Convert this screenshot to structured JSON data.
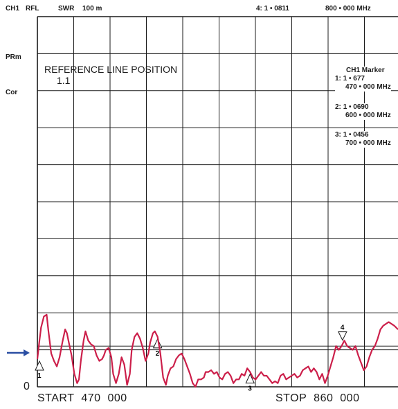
{
  "header": {
    "channel": "CH1",
    "format": "RFL",
    "mode": "SWR",
    "scale": "100 m",
    "marker_readout": "4: 1 • 0811",
    "marker_freq": "800 • 000 MHz"
  },
  "side_labels": {
    "prm": "PRm",
    "cor": "Cor"
  },
  "reference": {
    "title": "REFERENCE LINE POSITION",
    "value": "1.1"
  },
  "marker_panel": {
    "title": "CH1 Marker",
    "entries": [
      {
        "index": "1:",
        "value": "1 • 677",
        "freq": "470 • 000 MHz"
      },
      {
        "index": "2:",
        "value": "1 • 0690",
        "freq": "600 • 000 MHz"
      },
      {
        "index": "3:",
        "value": "1 • 0456",
        "freq": "700 • 000 MHz"
      }
    ]
  },
  "footer": {
    "start_label": "START",
    "start_value": "470",
    "start_unit": "000",
    "stop_label": "STOP",
    "stop_value": "860",
    "stop_unit": "000",
    "zero_label": "0"
  },
  "colors": {
    "trace": "#cc1f4a",
    "grid": "#1a1a1a",
    "arrow": "#2b4fa3"
  },
  "chart_data": {
    "type": "line",
    "x_start": 470,
    "x_stop": 860,
    "ylim": [
      0,
      10
    ],
    "grid": true,
    "reference_line": 1.1,
    "markers": [
      {
        "label": "1",
        "x": 470,
        "direction": "up"
      },
      {
        "label": "2",
        "x": 600,
        "direction": "up"
      },
      {
        "label": "3",
        "x": 700,
        "direction": "up"
      },
      {
        "label": "4",
        "x": 800,
        "direction": "down"
      }
    ],
    "x": [
      470,
      472,
      474,
      477,
      480,
      482,
      485,
      488,
      491,
      494,
      497,
      500,
      502,
      504,
      507,
      510,
      513,
      515,
      517,
      520,
      522,
      525,
      528,
      531,
      534,
      537,
      540,
      542,
      544,
      547,
      550,
      552,
      555,
      558,
      561,
      564,
      567,
      570,
      572,
      575,
      578,
      581,
      584,
      587,
      590,
      592,
      595,
      597,
      600,
      603,
      606,
      609,
      611,
      614,
      617,
      620,
      623,
      626,
      629,
      632,
      635,
      638,
      641,
      644,
      647,
      650,
      652,
      655,
      658,
      661,
      664,
      667,
      670,
      673,
      676,
      679,
      682,
      685,
      688,
      691,
      694,
      697,
      700,
      703,
      706,
      709,
      712,
      715,
      718,
      721,
      724,
      727,
      730,
      733,
      736,
      739,
      742,
      745,
      748,
      751,
      754,
      757,
      760,
      763,
      766,
      769,
      772,
      775,
      778,
      781,
      784,
      787,
      790,
      793,
      796,
      799,
      802,
      805,
      808,
      811,
      814,
      817,
      820,
      823,
      826,
      829,
      832,
      835,
      838,
      841,
      844,
      847,
      850,
      853,
      856,
      860
    ],
    "y": [
      0.75,
      1.2,
      1.6,
      1.9,
      1.95,
      1.5,
      0.9,
      0.7,
      0.55,
      0.8,
      1.2,
      1.55,
      1.45,
      1.2,
      0.85,
      0.35,
      0.1,
      0.2,
      0.7,
      1.25,
      1.5,
      1.25,
      1.15,
      1.1,
      0.85,
      0.7,
      0.75,
      0.85,
      1.0,
      1.05,
      0.8,
      0.35,
      0.1,
      0.35,
      0.8,
      0.6,
      0.05,
      0.35,
      1.0,
      1.35,
      1.45,
      1.3,
      1.05,
      0.7,
      0.9,
      1.2,
      1.45,
      1.5,
      1.35,
      0.9,
      0.25,
      0.05,
      0.3,
      0.5,
      0.55,
      0.75,
      0.85,
      0.9,
      0.75,
      0.55,
      0.35,
      0.1,
      0.0,
      0.2,
      0.2,
      0.25,
      0.4,
      0.4,
      0.45,
      0.35,
      0.4,
      0.25,
      0.2,
      0.35,
      0.4,
      0.3,
      0.1,
      0.2,
      0.2,
      0.35,
      0.3,
      0.5,
      0.4,
      0.25,
      0.2,
      0.3,
      0.4,
      0.3,
      0.3,
      0.2,
      0.1,
      0.15,
      0.1,
      0.3,
      0.35,
      0.2,
      0.25,
      0.3,
      0.35,
      0.25,
      0.3,
      0.45,
      0.5,
      0.55,
      0.4,
      0.5,
      0.4,
      0.2,
      0.35,
      0.1,
      0.3,
      0.55,
      0.8,
      1.1,
      1.0,
      1.1,
      1.25,
      1.1,
      1.05,
      1.0,
      1.1,
      0.85,
      0.65,
      0.45,
      0.55,
      0.8,
      1.0,
      1.1,
      1.3,
      1.55,
      1.65,
      1.7,
      1.75,
      1.7,
      1.65,
      1.55
    ]
  }
}
